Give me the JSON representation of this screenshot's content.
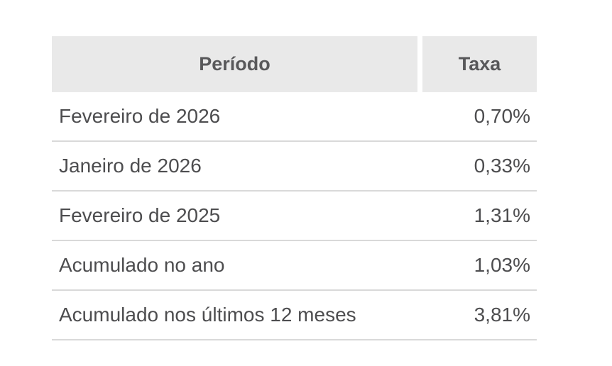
{
  "table": {
    "header": {
      "period_label": "Período",
      "rate_label": "Taxa"
    },
    "rows": [
      {
        "period": "Fevereiro de 2026",
        "rate": "0,70%"
      },
      {
        "period": "Janeiro de 2026",
        "rate": "0,33%"
      },
      {
        "period": "Fevereiro de 2025",
        "rate": "1,31%"
      },
      {
        "period": "Acumulado no ano",
        "rate": "1,03%"
      },
      {
        "period": "Acumulado nos últimos 12 meses",
        "rate": "3,81%"
      }
    ],
    "colors": {
      "header_bg": "#e9e9e9",
      "header_text": "#58585a",
      "row_text": "#4d4d4f",
      "divider": "#d9d9d9",
      "page_bg": "#ffffff"
    }
  },
  "chart_data": {
    "type": "table",
    "columns": [
      "Período",
      "Taxa"
    ],
    "rows": [
      [
        "Fevereiro de 2026",
        "0,70%"
      ],
      [
        "Janeiro de 2026",
        "0,33%"
      ],
      [
        "Fevereiro de 2025",
        "1,31%"
      ],
      [
        "Acumulado no ano",
        "1,03%"
      ],
      [
        "Acumulado nos últimos 12 meses",
        "3,81%"
      ]
    ],
    "values_numeric_percent": [
      0.7,
      0.33,
      1.31,
      1.03,
      3.81
    ]
  }
}
